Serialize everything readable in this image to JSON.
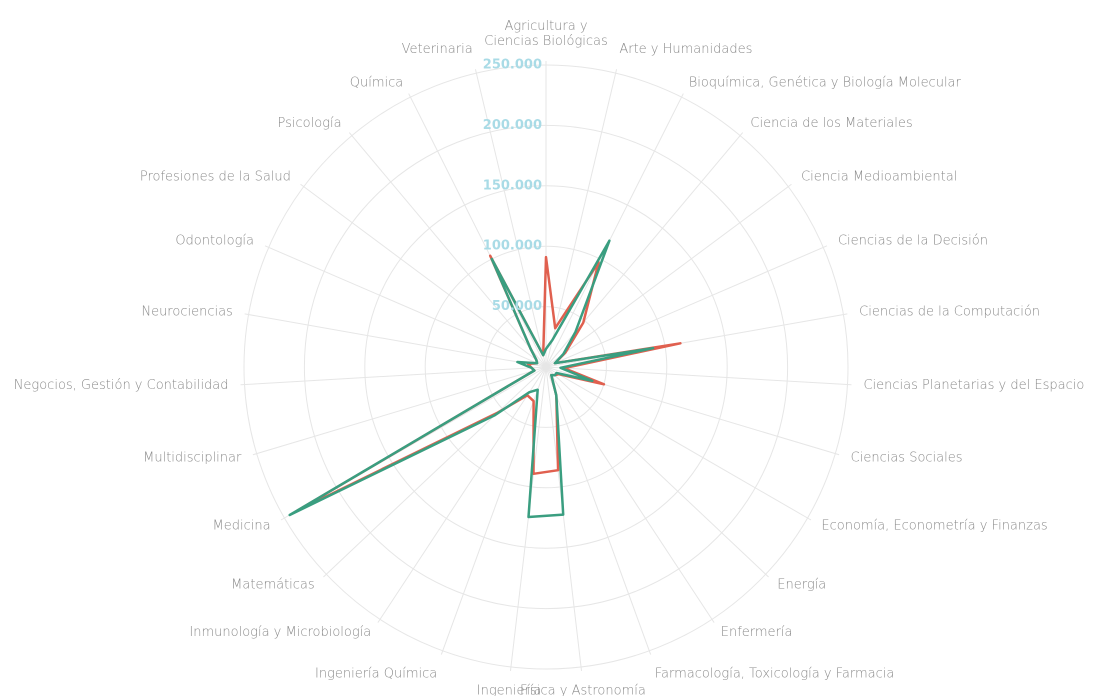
{
  "chart_data": {
    "type": "radar",
    "categories": [
      "Agricultura y\nCiencias Biológicas",
      "Arte y Humanidades",
      "Bioquímica, Genética y Biología Molecular",
      "Ciencia de los Materiales",
      "Ciencia Medioambiental",
      "Ciencias de la Decisión",
      "Ciencias de la Computación",
      "Ciencias Planetarias y del Espacio",
      "Ciencias Sociales",
      "Economía, Econometría y Finanzas",
      "Energía",
      "Enfermería",
      "Farmacología, Toxicología y Farmacia",
      "Física y Astronomía",
      "Ingeniería",
      "Ingeniería Química",
      "Inmunología y Microbiología",
      "Matemáticas",
      "Medicina",
      "Multidisciplinar",
      "Negocios, Gestión y Contabilidad",
      "Neurociencias",
      "Odontología",
      "Profesiones de la Salud",
      "Psicología",
      "Química",
      "Veterinaria"
    ],
    "series": [
      {
        "color": "#e0604f",
        "values": [
          91000,
          33000,
          97000,
          48000,
          20000,
          8000,
          113000,
          15000,
          50000,
          12000,
          10000,
          8000,
          25000,
          86000,
          89000,
          30000,
          28000,
          55000,
          238000,
          10000,
          12000,
          15000,
          8000,
          10000,
          20000,
          103000,
          10000
        ]
      },
      {
        "color": "#3a9e80",
        "values": [
          15000,
          23000,
          117000,
          38000,
          18000,
          8000,
          90000,
          12000,
          40000,
          10000,
          10000,
          8000,
          25000,
          123000,
          125000,
          20000,
          25000,
          58000,
          245000,
          10000,
          12000,
          24000,
          8000,
          10000,
          20000,
          100000,
          10000
        ]
      }
    ],
    "ylim": [
      0,
      250000
    ],
    "yticks": [
      {
        "value": 50000,
        "label": "50.000"
      },
      {
        "value": 100000,
        "label": "100.000"
      },
      {
        "value": 150000,
        "label": "150.000"
      },
      {
        "value": 200000,
        "label": "200.000"
      },
      {
        "value": 250000,
        "label": "250.000"
      }
    ],
    "grid": true
  }
}
